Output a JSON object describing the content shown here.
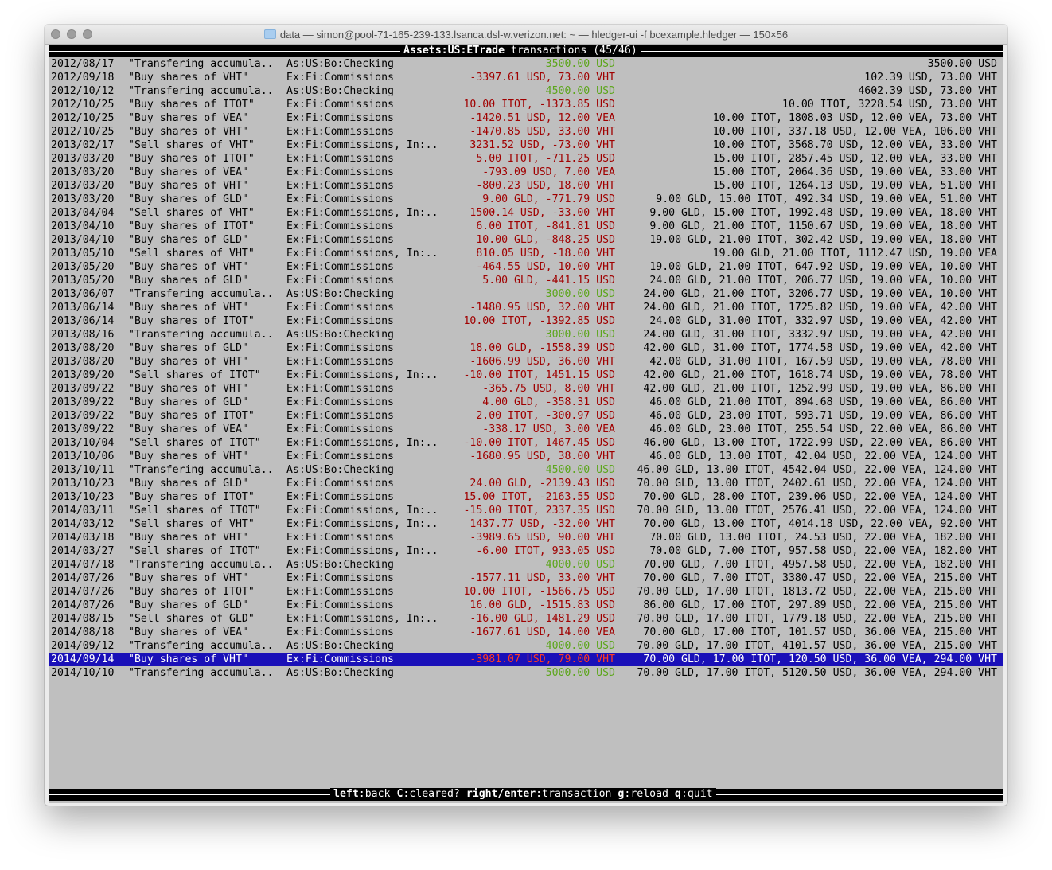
{
  "window": {
    "title": "data — simon@pool-71-165-239-133.lsanca.dsl-w.verizon.net: ~ — hledger-ui -f bcexample.hledger — 150×56"
  },
  "header": {
    "account": "Assets:US:ETrade",
    "label": "transactions",
    "position": "(45/46)"
  },
  "colors": {
    "background": "#bfbfbf",
    "negative": "#a00000",
    "positive": "#5da61c",
    "selection": "#1a10b8"
  },
  "selected_index": 44,
  "rows": [
    [
      "2012/08/17",
      "\"Transfering accumula..",
      "As:US:Bo:Checking",
      "3500.00 USD",
      "3500.00 USD",
      "pos"
    ],
    [
      "2012/09/18",
      "\"Buy shares of VHT\"",
      "Ex:Fi:Commissions",
      "-3397.61 USD, 73.00 VHT",
      "102.39 USD, 73.00 VHT",
      "neg"
    ],
    [
      "2012/10/12",
      "\"Transfering accumula..",
      "As:US:Bo:Checking",
      "4500.00 USD",
      "4602.39 USD, 73.00 VHT",
      "pos"
    ],
    [
      "2012/10/25",
      "\"Buy shares of ITOT\"",
      "Ex:Fi:Commissions",
      "10.00 ITOT, -1373.85 USD",
      "10.00 ITOT, 3228.54 USD, 73.00 VHT",
      "neg"
    ],
    [
      "2012/10/25",
      "\"Buy shares of VEA\"",
      "Ex:Fi:Commissions",
      "-1420.51 USD, 12.00 VEA",
      "10.00 ITOT, 1808.03 USD, 12.00 VEA, 73.00 VHT",
      "neg"
    ],
    [
      "2012/10/25",
      "\"Buy shares of VHT\"",
      "Ex:Fi:Commissions",
      "-1470.85 USD, 33.00 VHT",
      "10.00 ITOT, 337.18 USD, 12.00 VEA, 106.00 VHT",
      "neg"
    ],
    [
      "2013/02/17",
      "\"Sell shares of VHT\"",
      "Ex:Fi:Commissions, In:..",
      "3231.52 USD, -73.00 VHT",
      "10.00 ITOT, 3568.70 USD, 12.00 VEA, 33.00 VHT",
      "neg"
    ],
    [
      "2013/03/20",
      "\"Buy shares of ITOT\"",
      "Ex:Fi:Commissions",
      "5.00 ITOT, -711.25 USD",
      "15.00 ITOT, 2857.45 USD, 12.00 VEA, 33.00 VHT",
      "neg"
    ],
    [
      "2013/03/20",
      "\"Buy shares of VEA\"",
      "Ex:Fi:Commissions",
      "-793.09 USD, 7.00 VEA",
      "15.00 ITOT, 2064.36 USD, 19.00 VEA, 33.00 VHT",
      "neg"
    ],
    [
      "2013/03/20",
      "\"Buy shares of VHT\"",
      "Ex:Fi:Commissions",
      "-800.23 USD, 18.00 VHT",
      "15.00 ITOT, 1264.13 USD, 19.00 VEA, 51.00 VHT",
      "neg"
    ],
    [
      "2013/03/20",
      "\"Buy shares of GLD\"",
      "Ex:Fi:Commissions",
      "9.00 GLD, -771.79 USD",
      "9.00 GLD, 15.00 ITOT, 492.34 USD, 19.00 VEA, 51.00 VHT",
      "neg"
    ],
    [
      "2013/04/04",
      "\"Sell shares of VHT\"",
      "Ex:Fi:Commissions, In:..",
      "1500.14 USD, -33.00 VHT",
      "9.00 GLD, 15.00 ITOT, 1992.48 USD, 19.00 VEA, 18.00 VHT",
      "neg"
    ],
    [
      "2013/04/10",
      "\"Buy shares of ITOT\"",
      "Ex:Fi:Commissions",
      "6.00 ITOT, -841.81 USD",
      "9.00 GLD, 21.00 ITOT, 1150.67 USD, 19.00 VEA, 18.00 VHT",
      "neg"
    ],
    [
      "2013/04/10",
      "\"Buy shares of GLD\"",
      "Ex:Fi:Commissions",
      "10.00 GLD, -848.25 USD",
      "19.00 GLD, 21.00 ITOT, 302.42 USD, 19.00 VEA, 18.00 VHT",
      "neg"
    ],
    [
      "2013/05/10",
      "\"Sell shares of VHT\"",
      "Ex:Fi:Commissions, In:..",
      "810.05 USD, -18.00 VHT",
      "19.00 GLD, 21.00 ITOT, 1112.47 USD, 19.00 VEA",
      "neg"
    ],
    [
      "2013/05/20",
      "\"Buy shares of VHT\"",
      "Ex:Fi:Commissions",
      "-464.55 USD, 10.00 VHT",
      "19.00 GLD, 21.00 ITOT, 647.92 USD, 19.00 VEA, 10.00 VHT",
      "neg"
    ],
    [
      "2013/05/20",
      "\"Buy shares of GLD\"",
      "Ex:Fi:Commissions",
      "5.00 GLD, -441.15 USD",
      "24.00 GLD, 21.00 ITOT, 206.77 USD, 19.00 VEA, 10.00 VHT",
      "neg"
    ],
    [
      "2013/06/07",
      "\"Transfering accumula..",
      "As:US:Bo:Checking",
      "3000.00 USD",
      "24.00 GLD, 21.00 ITOT, 3206.77 USD, 19.00 VEA, 10.00 VHT",
      "pos"
    ],
    [
      "2013/06/14",
      "\"Buy shares of VHT\"",
      "Ex:Fi:Commissions",
      "-1480.95 USD, 32.00 VHT",
      "24.00 GLD, 21.00 ITOT, 1725.82 USD, 19.00 VEA, 42.00 VHT",
      "neg"
    ],
    [
      "2013/06/14",
      "\"Buy shares of ITOT\"",
      "Ex:Fi:Commissions",
      "10.00 ITOT, -1392.85 USD",
      "24.00 GLD, 31.00 ITOT, 332.97 USD, 19.00 VEA, 42.00 VHT",
      "neg"
    ],
    [
      "2013/08/16",
      "\"Transfering accumula..",
      "As:US:Bo:Checking",
      "3000.00 USD",
      "24.00 GLD, 31.00 ITOT, 3332.97 USD, 19.00 VEA, 42.00 VHT",
      "pos"
    ],
    [
      "2013/08/20",
      "\"Buy shares of GLD\"",
      "Ex:Fi:Commissions",
      "18.00 GLD, -1558.39 USD",
      "42.00 GLD, 31.00 ITOT, 1774.58 USD, 19.00 VEA, 42.00 VHT",
      "neg"
    ],
    [
      "2013/08/20",
      "\"Buy shares of VHT\"",
      "Ex:Fi:Commissions",
      "-1606.99 USD, 36.00 VHT",
      "42.00 GLD, 31.00 ITOT, 167.59 USD, 19.00 VEA, 78.00 VHT",
      "neg"
    ],
    [
      "2013/09/20",
      "\"Sell shares of ITOT\"",
      "Ex:Fi:Commissions, In:..",
      "-10.00 ITOT, 1451.15 USD",
      "42.00 GLD, 21.00 ITOT, 1618.74 USD, 19.00 VEA, 78.00 VHT",
      "neg"
    ],
    [
      "2013/09/22",
      "\"Buy shares of VHT\"",
      "Ex:Fi:Commissions",
      "-365.75 USD, 8.00 VHT",
      "42.00 GLD, 21.00 ITOT, 1252.99 USD, 19.00 VEA, 86.00 VHT",
      "neg"
    ],
    [
      "2013/09/22",
      "\"Buy shares of GLD\"",
      "Ex:Fi:Commissions",
      "4.00 GLD, -358.31 USD",
      "46.00 GLD, 21.00 ITOT, 894.68 USD, 19.00 VEA, 86.00 VHT",
      "neg"
    ],
    [
      "2013/09/22",
      "\"Buy shares of ITOT\"",
      "Ex:Fi:Commissions",
      "2.00 ITOT, -300.97 USD",
      "46.00 GLD, 23.00 ITOT, 593.71 USD, 19.00 VEA, 86.00 VHT",
      "neg"
    ],
    [
      "2013/09/22",
      "\"Buy shares of VEA\"",
      "Ex:Fi:Commissions",
      "-338.17 USD, 3.00 VEA",
      "46.00 GLD, 23.00 ITOT, 255.54 USD, 22.00 VEA, 86.00 VHT",
      "neg"
    ],
    [
      "2013/10/04",
      "\"Sell shares of ITOT\"",
      "Ex:Fi:Commissions, In:..",
      "-10.00 ITOT, 1467.45 USD",
      "46.00 GLD, 13.00 ITOT, 1722.99 USD, 22.00 VEA, 86.00 VHT",
      "neg"
    ],
    [
      "2013/10/06",
      "\"Buy shares of VHT\"",
      "Ex:Fi:Commissions",
      "-1680.95 USD, 38.00 VHT",
      "46.00 GLD, 13.00 ITOT, 42.04 USD, 22.00 VEA, 124.00 VHT",
      "neg"
    ],
    [
      "2013/10/11",
      "\"Transfering accumula..",
      "As:US:Bo:Checking",
      "4500.00 USD",
      "46.00 GLD, 13.00 ITOT, 4542.04 USD, 22.00 VEA, 124.00 VHT",
      "pos"
    ],
    [
      "2013/10/23",
      "\"Buy shares of GLD\"",
      "Ex:Fi:Commissions",
      "24.00 GLD, -2139.43 USD",
      "70.00 GLD, 13.00 ITOT, 2402.61 USD, 22.00 VEA, 124.00 VHT",
      "neg"
    ],
    [
      "2013/10/23",
      "\"Buy shares of ITOT\"",
      "Ex:Fi:Commissions",
      "15.00 ITOT, -2163.55 USD",
      "70.00 GLD, 28.00 ITOT, 239.06 USD, 22.00 VEA, 124.00 VHT",
      "neg"
    ],
    [
      "2014/03/11",
      "\"Sell shares of ITOT\"",
      "Ex:Fi:Commissions, In:..",
      "-15.00 ITOT, 2337.35 USD",
      "70.00 GLD, 13.00 ITOT, 2576.41 USD, 22.00 VEA, 124.00 VHT",
      "neg"
    ],
    [
      "2014/03/12",
      "\"Sell shares of VHT\"",
      "Ex:Fi:Commissions, In:..",
      "1437.77 USD, -32.00 VHT",
      "70.00 GLD, 13.00 ITOT, 4014.18 USD, 22.00 VEA, 92.00 VHT",
      "neg"
    ],
    [
      "2014/03/18",
      "\"Buy shares of VHT\"",
      "Ex:Fi:Commissions",
      "-3989.65 USD, 90.00 VHT",
      "70.00 GLD, 13.00 ITOT, 24.53 USD, 22.00 VEA, 182.00 VHT",
      "neg"
    ],
    [
      "2014/03/27",
      "\"Sell shares of ITOT\"",
      "Ex:Fi:Commissions, In:..",
      "-6.00 ITOT, 933.05 USD",
      "70.00 GLD, 7.00 ITOT, 957.58 USD, 22.00 VEA, 182.00 VHT",
      "neg"
    ],
    [
      "2014/07/18",
      "\"Transfering accumula..",
      "As:US:Bo:Checking",
      "4000.00 USD",
      "70.00 GLD, 7.00 ITOT, 4957.58 USD, 22.00 VEA, 182.00 VHT",
      "pos"
    ],
    [
      "2014/07/26",
      "\"Buy shares of VHT\"",
      "Ex:Fi:Commissions",
      "-1577.11 USD, 33.00 VHT",
      "70.00 GLD, 7.00 ITOT, 3380.47 USD, 22.00 VEA, 215.00 VHT",
      "neg"
    ],
    [
      "2014/07/26",
      "\"Buy shares of ITOT\"",
      "Ex:Fi:Commissions",
      "10.00 ITOT, -1566.75 USD",
      "70.00 GLD, 17.00 ITOT, 1813.72 USD, 22.00 VEA, 215.00 VHT",
      "neg"
    ],
    [
      "2014/07/26",
      "\"Buy shares of GLD\"",
      "Ex:Fi:Commissions",
      "16.00 GLD, -1515.83 USD",
      "86.00 GLD, 17.00 ITOT, 297.89 USD, 22.00 VEA, 215.00 VHT",
      "neg"
    ],
    [
      "2014/08/15",
      "\"Sell shares of GLD\"",
      "Ex:Fi:Commissions, In:..",
      "-16.00 GLD, 1481.29 USD",
      "70.00 GLD, 17.00 ITOT, 1779.18 USD, 22.00 VEA, 215.00 VHT",
      "neg"
    ],
    [
      "2014/08/18",
      "\"Buy shares of VEA\"",
      "Ex:Fi:Commissions",
      "-1677.61 USD, 14.00 VEA",
      "70.00 GLD, 17.00 ITOT, 101.57 USD, 36.00 VEA, 215.00 VHT",
      "neg"
    ],
    [
      "2014/09/12",
      "\"Transfering accumula..",
      "As:US:Bo:Checking",
      "4000.00 USD",
      "70.00 GLD, 17.00 ITOT, 4101.57 USD, 36.00 VEA, 215.00 VHT",
      "pos"
    ],
    [
      "2014/09/14",
      "\"Buy shares of VHT\"",
      "Ex:Fi:Commissions",
      "-3981.07 USD, 79.00 VHT",
      "70.00 GLD, 17.00 ITOT, 120.50 USD, 36.00 VEA, 294.00 VHT",
      "neg"
    ],
    [
      "2014/10/10",
      "\"Transfering accumula..",
      "As:US:Bo:Checking",
      "5000.00 USD",
      "70.00 GLD, 17.00 ITOT, 5120.50 USD, 36.00 VEA, 294.00 VHT",
      "pos"
    ]
  ],
  "footer": {
    "keys": [
      {
        "key": "left",
        "action": "back"
      },
      {
        "key": "C",
        "action": "cleared?"
      },
      {
        "key": "right/enter",
        "action": "transaction"
      },
      {
        "key": "g",
        "action": "reload"
      },
      {
        "key": "q",
        "action": "quit"
      }
    ]
  }
}
